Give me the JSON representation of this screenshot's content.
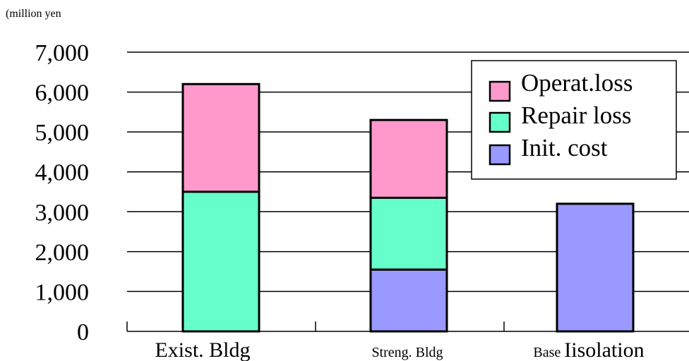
{
  "chart_data": {
    "type": "bar",
    "stacked": true,
    "ylabel": "(million yen",
    "ylim": [
      0,
      7000
    ],
    "yticks": [
      "0",
      "1,000",
      "2,000",
      "3,000",
      "4,000",
      "5,000",
      "6,000",
      "7,000"
    ],
    "ytick_values": [
      0,
      1000,
      2000,
      3000,
      4000,
      5000,
      6000,
      7000
    ],
    "categories": [
      "Exist. Bldg",
      "Streng. Bldg",
      "Base Iisolation"
    ],
    "category_labels": [
      {
        "prefix": "",
        "main": "Exist. Bldg"
      },
      {
        "prefix": "Streng. Bldg",
        "main": ""
      },
      {
        "prefix": "Base ",
        "main": "Iisolation"
      }
    ],
    "series": [
      {
        "name": "Init. cost",
        "color": "#9999ff",
        "values": [
          0,
          1550,
          3200
        ]
      },
      {
        "name": "Repair loss",
        "color": "#66ffcc",
        "values": [
          3500,
          1800,
          0
        ]
      },
      {
        "name": "Operat.loss",
        "color": "#ff99cc",
        "values": [
          2700,
          1950,
          0
        ]
      }
    ],
    "legend": {
      "position": "top-right",
      "order": [
        "Operat.loss",
        "Repair loss",
        "Init. cost"
      ]
    },
    "grid": true
  }
}
